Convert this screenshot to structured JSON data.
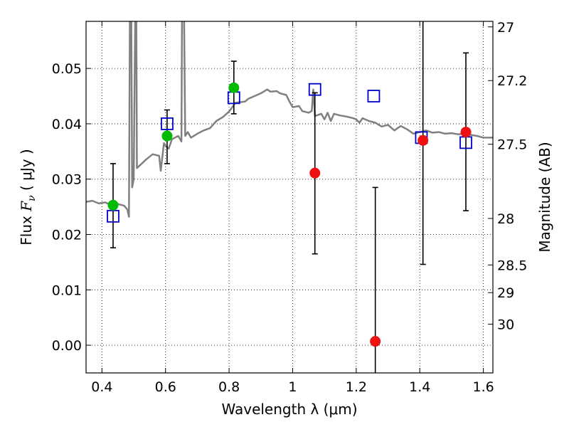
{
  "chart_data": {
    "type": "scatter",
    "xlabel": "Wavelength  λ (μm)",
    "ylabel": "Flux  Fν  ( μJy )",
    "ylabel_parts": {
      "prefix": "Flux  ",
      "symbol": "F",
      "subscript": "ν",
      "suffix": "  ( μJy )"
    },
    "y2label": "Magnitude (AB)",
    "xlim": [
      0.35,
      1.63
    ],
    "ylim": [
      -0.005,
      0.0585
    ],
    "grid": true,
    "x_ticks": [
      0.4,
      0.6,
      0.8,
      1.0,
      1.2,
      1.4,
      1.6
    ],
    "x_tick_labels": [
      "0.4",
      "0.6",
      "0.8",
      "1",
      "1.2",
      "1.4",
      "1.6"
    ],
    "y_ticks": [
      0.0,
      0.01,
      0.02,
      0.03,
      0.04,
      0.05
    ],
    "y_tick_labels": [
      "0.00",
      "0.01",
      "0.02",
      "0.03",
      "0.04",
      "0.05"
    ],
    "y2_ticks": [
      {
        "label": "27",
        "flux": 0.0575
      },
      {
        "label": "27.2",
        "flux": 0.0478
      },
      {
        "label": "27.5",
        "flux": 0.0363
      },
      {
        "label": "28",
        "flux": 0.0229
      },
      {
        "label": "28.5",
        "flux": 0.0145
      },
      {
        "label": "29",
        "flux": 0.0095
      },
      {
        "label": "30",
        "flux": 0.0038
      }
    ],
    "colors": {
      "model": "#808080",
      "model_photometry": "#0000cc",
      "detections": "#00bb00",
      "measurements": "#ee1111",
      "errorbars": "#000000"
    },
    "series": [
      {
        "kind": "model_spectrum",
        "points": [
          [
            0.35,
            0.0259
          ],
          [
            0.37,
            0.0261
          ],
          [
            0.39,
            0.0256
          ],
          [
            0.41,
            0.0258
          ],
          [
            0.43,
            0.0253
          ],
          [
            0.45,
            0.0255
          ],
          [
            0.47,
            0.0252
          ],
          [
            0.48,
            0.0245
          ],
          [
            0.485,
            0.0232
          ],
          [
            0.488,
            0.062
          ],
          [
            0.492,
            0.062
          ],
          [
            0.495,
            0.0285
          ],
          [
            0.5,
            0.03
          ],
          [
            0.505,
            0.062
          ],
          [
            0.508,
            0.062
          ],
          [
            0.51,
            0.032
          ],
          [
            0.54,
            0.0336
          ],
          [
            0.56,
            0.0345
          ],
          [
            0.58,
            0.0342
          ],
          [
            0.585,
            0.0315
          ],
          [
            0.595,
            0.0365
          ],
          [
            0.6,
            0.036
          ],
          [
            0.61,
            0.0355
          ],
          [
            0.62,
            0.0372
          ],
          [
            0.64,
            0.0378
          ],
          [
            0.65,
            0.0368
          ],
          [
            0.652,
            0.062
          ],
          [
            0.658,
            0.062
          ],
          [
            0.662,
            0.0378
          ],
          [
            0.67,
            0.0385
          ],
          [
            0.68,
            0.0375
          ],
          [
            0.7,
            0.0382
          ],
          [
            0.72,
            0.0388
          ],
          [
            0.74,
            0.0392
          ],
          [
            0.76,
            0.0405
          ],
          [
            0.78,
            0.0412
          ],
          [
            0.8,
            0.0422
          ],
          [
            0.81,
            0.043
          ],
          [
            0.82,
            0.0438
          ],
          [
            0.85,
            0.044
          ],
          [
            0.86,
            0.0445
          ],
          [
            0.88,
            0.045
          ],
          [
            0.9,
            0.0455
          ],
          [
            0.92,
            0.0462
          ],
          [
            0.93,
            0.0458
          ],
          [
            0.95,
            0.0459
          ],
          [
            0.96,
            0.0455
          ],
          [
            0.98,
            0.0452
          ],
          [
            0.99,
            0.044
          ],
          [
            1.0,
            0.043
          ],
          [
            1.02,
            0.0432
          ],
          [
            1.03,
            0.0423
          ],
          [
            1.05,
            0.042
          ],
          [
            1.06,
            0.0423
          ],
          [
            1.065,
            0.0462
          ],
          [
            1.07,
            0.0414
          ],
          [
            1.09,
            0.0418
          ],
          [
            1.1,
            0.0408
          ],
          [
            1.11,
            0.042
          ],
          [
            1.12,
            0.0405
          ],
          [
            1.13,
            0.0418
          ],
          [
            1.15,
            0.0415
          ],
          [
            1.17,
            0.0413
          ],
          [
            1.19,
            0.041
          ],
          [
            1.2,
            0.0408
          ],
          [
            1.21,
            0.0402
          ],
          [
            1.22,
            0.041
          ],
          [
            1.24,
            0.0405
          ],
          [
            1.26,
            0.0402
          ],
          [
            1.28,
            0.0395
          ],
          [
            1.3,
            0.0398
          ],
          [
            1.32,
            0.0388
          ],
          [
            1.34,
            0.0396
          ],
          [
            1.36,
            0.039
          ],
          [
            1.38,
            0.0382
          ],
          [
            1.4,
            0.0385
          ],
          [
            1.42,
            0.0388
          ],
          [
            1.44,
            0.0384
          ],
          [
            1.46,
            0.0385
          ],
          [
            1.48,
            0.0382
          ],
          [
            1.5,
            0.0383
          ],
          [
            1.52,
            0.0381
          ],
          [
            1.54,
            0.0382
          ],
          [
            1.56,
            0.038
          ],
          [
            1.58,
            0.0378
          ],
          [
            1.6,
            0.0375
          ],
          [
            1.63,
            0.0375
          ]
        ]
      },
      {
        "kind": "model_photometry",
        "points": [
          [
            0.435,
            0.0233
          ],
          [
            0.605,
            0.04
          ],
          [
            0.815,
            0.0447
          ],
          [
            1.07,
            0.0462
          ],
          [
            1.255,
            0.045
          ],
          [
            1.405,
            0.0375
          ],
          [
            1.545,
            0.0366
          ]
        ]
      },
      {
        "kind": "detections",
        "points": [
          {
            "x": 0.435,
            "y": 0.0253,
            "lo": 0.0176,
            "hi": 0.0328
          },
          {
            "x": 0.605,
            "y": 0.0378,
            "lo": 0.0328,
            "hi": 0.0425
          },
          {
            "x": 0.815,
            "y": 0.0465,
            "lo": 0.0418,
            "hi": 0.0513
          }
        ]
      },
      {
        "kind": "measurements",
        "points": [
          {
            "x": 1.07,
            "y": 0.0311,
            "lo": 0.0165,
            "hi": 0.0456
          },
          {
            "x": 1.26,
            "y": 0.0007,
            "lo": -0.0057,
            "hi": 0.0285
          },
          {
            "x": 1.41,
            "y": 0.037,
            "lo": 0.0146,
            "hi": 0.06
          },
          {
            "x": 1.545,
            "y": 0.0385,
            "lo": 0.0243,
            "hi": 0.0528
          }
        ]
      }
    ]
  }
}
